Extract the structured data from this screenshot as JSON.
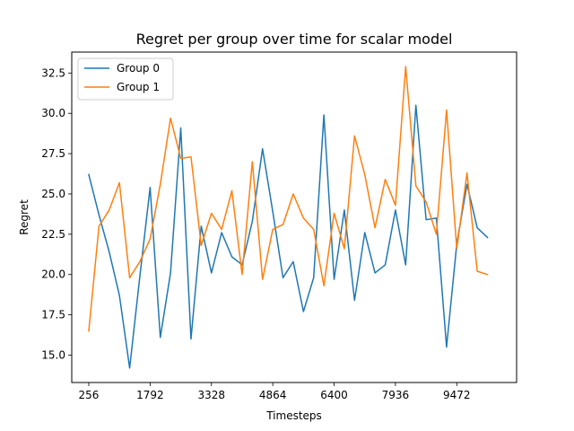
{
  "chart_data": {
    "type": "line",
    "title": "Regret per group over time for scalar model",
    "xlabel": "Timesteps",
    "ylabel": "Regret",
    "x_ticks": [
      256,
      1792,
      3328,
      4864,
      6400,
      7936,
      9472
    ],
    "y_ticks": [
      "15.0",
      "17.5",
      "20.0",
      "22.5",
      "25.0",
      "27.5",
      "30.0",
      "32.5"
    ],
    "xlim": [
      -170,
      10970
    ],
    "ylim": [
      13.3,
      33.8
    ],
    "grid": false,
    "legend_position": "upper-left",
    "x": [
      256,
      512,
      768,
      1024,
      1280,
      1536,
      1792,
      2048,
      2304,
      2560,
      2816,
      3072,
      3328,
      3584,
      3840,
      4096,
      4352,
      4608,
      4864,
      5120,
      5376,
      5632,
      5888,
      6144,
      6400,
      6656,
      6912,
      7168,
      7424,
      7680,
      7936,
      8192,
      8448,
      8704,
      8960,
      9216,
      9472,
      9728,
      9984,
      10240
    ],
    "series": [
      {
        "name": "Group 0",
        "color": "#1f77b4",
        "values": [
          26.2,
          23.7,
          21.4,
          18.7,
          14.2,
          19.9,
          25.4,
          16.1,
          20.1,
          29.1,
          16.0,
          23.0,
          20.1,
          22.6,
          21.1,
          20.6,
          23.3,
          27.8,
          23.9,
          19.8,
          20.8,
          17.7,
          19.8,
          29.9,
          19.7,
          24.0,
          18.4,
          22.6,
          20.1,
          20.6,
          24.0,
          20.6,
          30.5,
          23.4,
          23.5,
          15.5,
          21.9,
          25.6,
          22.9,
          22.3
        ]
      },
      {
        "name": "Group 1",
        "color": "#ff7f0e",
        "values": [
          16.5,
          23.0,
          24.0,
          25.7,
          19.8,
          20.8,
          22.2,
          25.6,
          29.7,
          27.2,
          27.3,
          21.8,
          23.8,
          22.8,
          25.2,
          20.0,
          27.0,
          19.7,
          22.8,
          23.1,
          25.0,
          23.5,
          22.8,
          19.3,
          23.8,
          21.6,
          28.6,
          26.2,
          22.9,
          25.9,
          24.3,
          32.9,
          25.5,
          24.5,
          22.5,
          30.2,
          21.6,
          26.3,
          20.2,
          20.0
        ]
      }
    ]
  }
}
